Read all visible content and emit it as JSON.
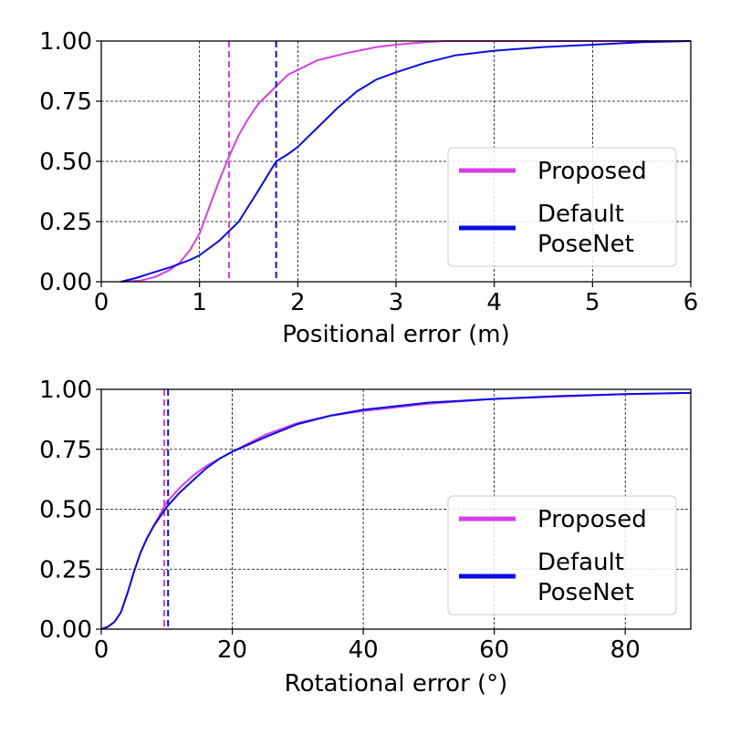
{
  "colors": {
    "proposed": "#d63ee8",
    "default": "#0a0ae6",
    "grid": "#000000",
    "frame": "#000000"
  },
  "chart_data": [
    {
      "type": "line",
      "xlabel": "Positional error (m)",
      "ylabel": "",
      "xlim": [
        0,
        6
      ],
      "ylim": [
        0,
        1
      ],
      "xticks": [
        "0",
        "1",
        "2",
        "3",
        "4",
        "5",
        "6"
      ],
      "yticks": [
        "0.00",
        "0.25",
        "0.50",
        "0.75",
        "1.00"
      ],
      "grid": true,
      "legend_position": "center-right",
      "series": [
        {
          "name": "Proposed",
          "color": "#d63ee8",
          "median": 1.3,
          "x": [
            0.2,
            0.4,
            0.55,
            0.7,
            0.8,
            0.9,
            1.0,
            1.1,
            1.2,
            1.3,
            1.4,
            1.5,
            1.6,
            1.7,
            1.8,
            1.9,
            2.0,
            2.2,
            2.5,
            2.8,
            3.0,
            3.3,
            3.5,
            4.0,
            6.0
          ],
          "y": [
            0.0,
            0.005,
            0.02,
            0.05,
            0.08,
            0.13,
            0.2,
            0.31,
            0.42,
            0.52,
            0.61,
            0.68,
            0.74,
            0.78,
            0.82,
            0.86,
            0.88,
            0.92,
            0.95,
            0.975,
            0.985,
            0.995,
            1.0,
            1.0,
            1.0
          ]
        },
        {
          "name": "Default PoseNet",
          "color": "#0a0ae6",
          "median": 1.78,
          "x": [
            0.2,
            0.35,
            0.5,
            0.7,
            0.9,
            1.0,
            1.2,
            1.4,
            1.6,
            1.78,
            1.9,
            2.0,
            2.2,
            2.4,
            2.6,
            2.8,
            3.0,
            3.3,
            3.6,
            4.0,
            4.5,
            5.0,
            5.5,
            6.0
          ],
          "y": [
            0.0,
            0.015,
            0.035,
            0.06,
            0.09,
            0.11,
            0.17,
            0.25,
            0.38,
            0.5,
            0.53,
            0.56,
            0.64,
            0.72,
            0.79,
            0.84,
            0.87,
            0.91,
            0.94,
            0.96,
            0.975,
            0.985,
            0.995,
            1.0
          ]
        }
      ]
    },
    {
      "type": "line",
      "xlabel": "Rotational error (°)",
      "ylabel": "",
      "xlim": [
        0,
        90
      ],
      "ylim": [
        0,
        1
      ],
      "xticks": [
        "0",
        "20",
        "40",
        "60",
        "80"
      ],
      "yticks": [
        "0.00",
        "0.25",
        "0.50",
        "0.75",
        "1.00"
      ],
      "grid": true,
      "legend_position": "center-right",
      "series": [
        {
          "name": "Proposed",
          "color": "#d63ee8",
          "median": 9.6,
          "x": [
            0,
            1,
            2,
            3,
            4,
            5,
            6,
            7,
            8,
            9,
            10,
            12,
            14,
            16,
            18,
            20,
            25,
            30,
            35,
            40,
            50,
            60,
            70,
            80,
            90
          ],
          "y": [
            0.0,
            0.01,
            0.03,
            0.07,
            0.15,
            0.24,
            0.32,
            0.38,
            0.43,
            0.48,
            0.53,
            0.59,
            0.64,
            0.68,
            0.71,
            0.74,
            0.81,
            0.86,
            0.89,
            0.91,
            0.94,
            0.96,
            0.97,
            0.98,
            0.985
          ]
        },
        {
          "name": "Default PoseNet",
          "color": "#0a0ae6",
          "median": 10.2,
          "x": [
            0,
            1,
            2,
            3,
            4,
            5,
            6,
            7,
            8,
            9,
            10,
            12,
            14,
            16,
            18,
            20,
            25,
            30,
            35,
            40,
            50,
            60,
            70,
            80,
            90
          ],
          "y": [
            0.0,
            0.01,
            0.03,
            0.07,
            0.15,
            0.24,
            0.32,
            0.38,
            0.43,
            0.47,
            0.51,
            0.57,
            0.62,
            0.67,
            0.71,
            0.74,
            0.8,
            0.855,
            0.89,
            0.915,
            0.945,
            0.96,
            0.972,
            0.98,
            0.985
          ]
        }
      ]
    }
  ]
}
